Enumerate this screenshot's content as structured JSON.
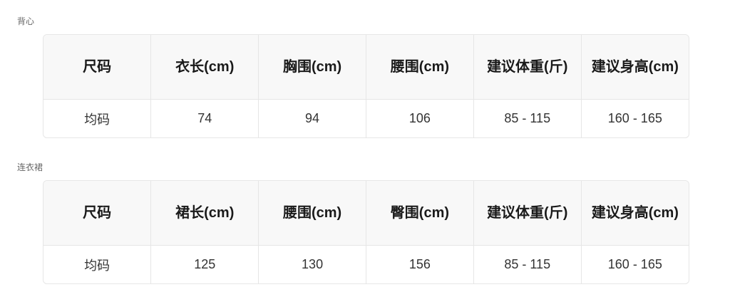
{
  "sections": [
    {
      "title": "背心",
      "headers": [
        "尺码",
        "衣长(cm)",
        "胸围(cm)",
        "腰围(cm)",
        "建议体重(斤)",
        "建议身高(cm)"
      ],
      "rows": [
        [
          "均码",
          "74",
          "94",
          "106",
          "85 - 115",
          "160 - 165"
        ]
      ]
    },
    {
      "title": "连衣裙",
      "headers": [
        "尺码",
        "裙长(cm)",
        "腰围(cm)",
        "臀围(cm)",
        "建议体重(斤)",
        "建议身高(cm)"
      ],
      "rows": [
        [
          "均码",
          "125",
          "130",
          "156",
          "85 - 115",
          "160 - 165"
        ]
      ]
    }
  ]
}
